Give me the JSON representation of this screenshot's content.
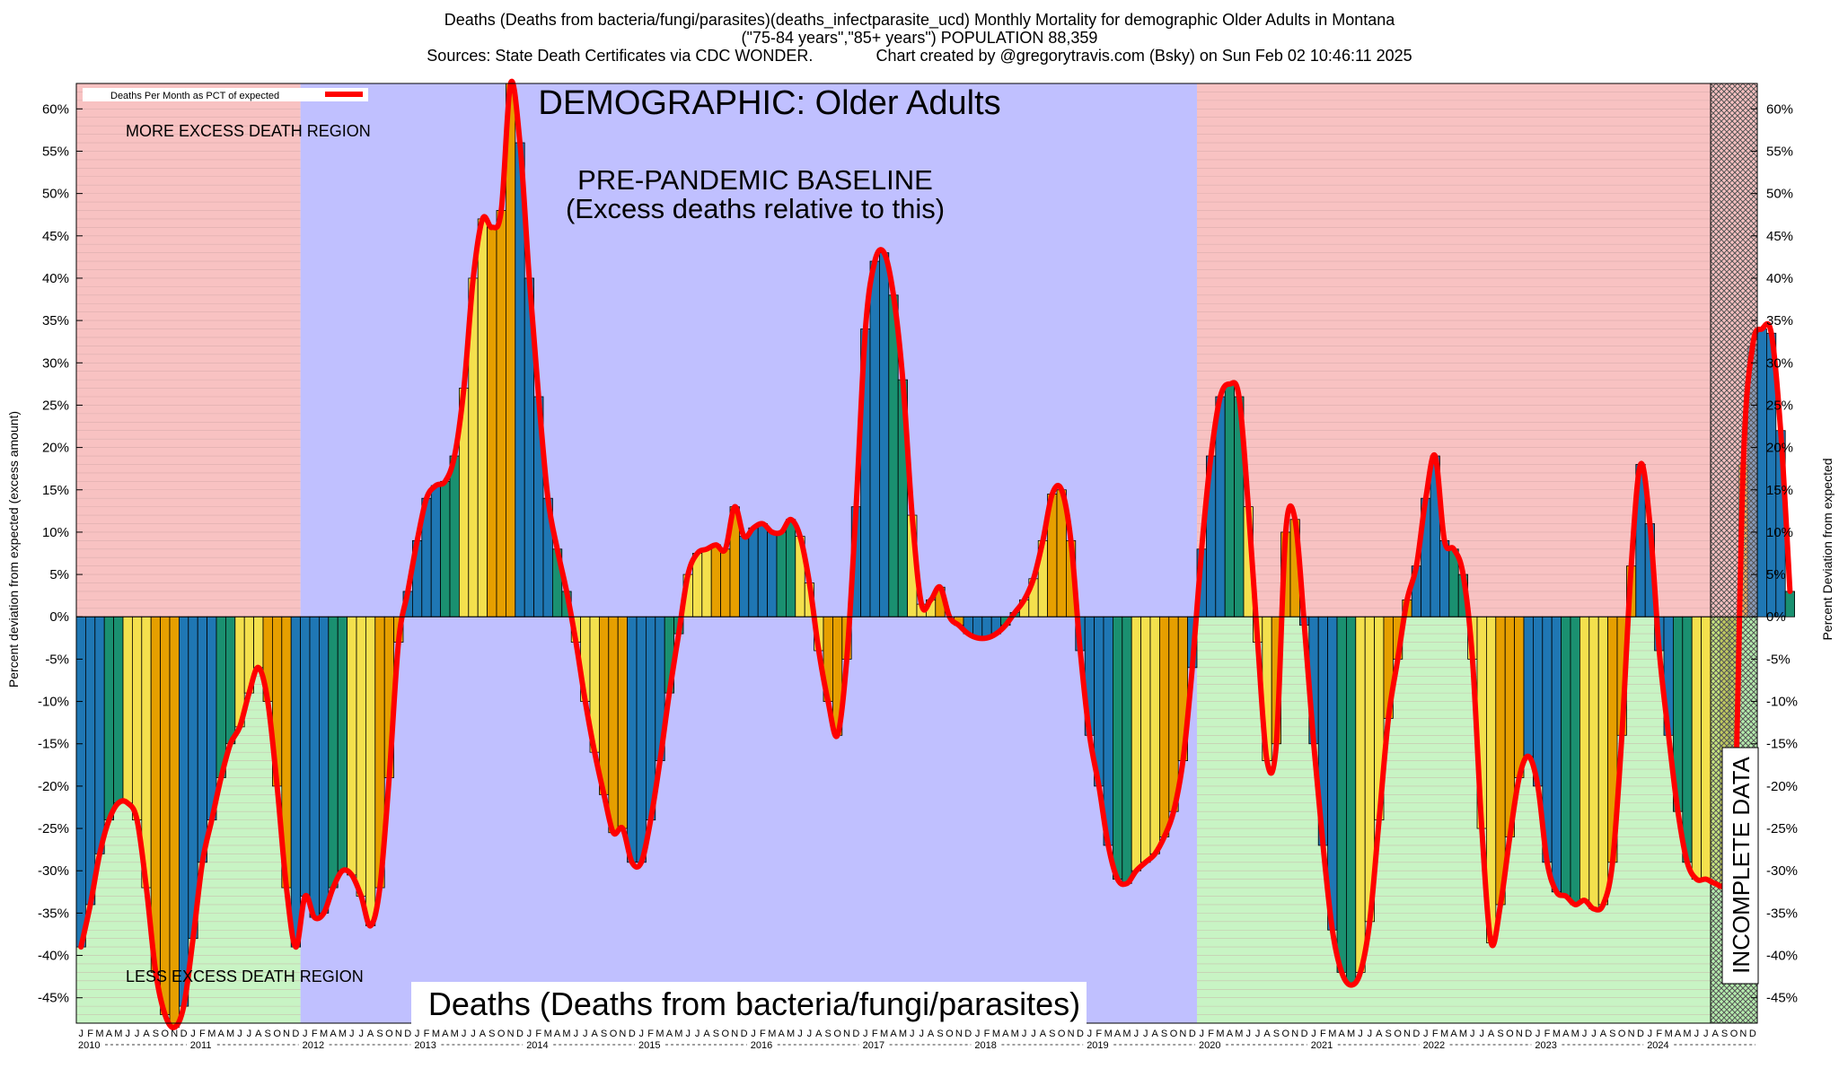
{
  "title_lines": [
    "Deaths (Deaths from bacteria/fungi/parasites)(deaths_infectparasite_ucd) Monthly Mortality for demographic Older Adults in Montana",
    "(\"75-84 years\",\"85+ years\") POPULATION 88,359",
    "Sources: State Death Certificates via CDC WONDER.              Chart created by @gregorytravis.com (Bsky) on Sun Feb 02 10:46:11 2025"
  ],
  "labels": {
    "demographic": "DEMOGRAPHIC: Older Adults",
    "baseline_line1": "PRE-PANDEMIC BASELINE",
    "baseline_line2": "(Excess deaths relative to this)",
    "more_excess": "MORE EXCESS DEATH REGION",
    "less_excess": "LESS EXCESS DEATH REGION",
    "bottom_title": "Deaths (Deaths from bacteria/fungi/parasites)",
    "incomplete": "INCOMPLETE DATA",
    "legend": "Deaths Per Month as PCT of expected"
  },
  "colors": {
    "more_region": "#f8c2c2",
    "less_region": "#c8f4c4",
    "baseline_region": "#c0c0ff",
    "line": "#ff0000",
    "bar_palette": [
      "#1f77b4",
      "#1a9070",
      "#f4e04d",
      "#e69f00"
    ]
  },
  "chart_data": {
    "type": "bar",
    "ylabel_left": "Percent deviation from expected (excess amount)",
    "ylabel_right": "Percent Deviation from expected",
    "ylim": [
      -48,
      63
    ],
    "yticks": [
      -45,
      -40,
      -35,
      -30,
      -25,
      -20,
      -15,
      -10,
      -5,
      0,
      5,
      10,
      15,
      20,
      25,
      30,
      35,
      40,
      45,
      50,
      55,
      60
    ],
    "x_start": "2010-01",
    "month_letters": [
      "J",
      "F",
      "M",
      "A",
      "M",
      "J",
      "J",
      "A",
      "S",
      "O",
      "N",
      "D"
    ],
    "years": [
      "2010",
      "2011",
      "2012",
      "2013",
      "2014",
      "2015",
      "2016",
      "2017",
      "2018",
      "2019",
      "2020",
      "2021",
      "2022",
      "2023",
      "2024"
    ],
    "baseline_period": [
      "2012-01",
      "2019-12"
    ],
    "incomplete_period": [
      "2024-08",
      "2024-12"
    ],
    "series": [
      {
        "name": "Deaths Per Month as PCT of expected",
        "values": [
          -39,
          -34,
          -28,
          -24,
          -22,
          -22,
          -24,
          -32,
          -42,
          -47,
          -48.5,
          -46,
          -38,
          -29,
          -24,
          -19,
          -15,
          -13,
          -9,
          -6,
          -10,
          -20,
          -32,
          -39,
          -33,
          -35.5,
          -35,
          -32,
          -30,
          -30.5,
          -33,
          -36.5,
          -32,
          -19,
          -3,
          3,
          9,
          14,
          15.5,
          16,
          19,
          27,
          40,
          47,
          46,
          48,
          63,
          56,
          40,
          26,
          14,
          8,
          3,
          -3,
          -10,
          -16,
          -21,
          -25.5,
          -25,
          -29,
          -29,
          -24,
          -17,
          -9,
          -2,
          5,
          7.5,
          8,
          8.5,
          8,
          13,
          9.5,
          10.5,
          11,
          10,
          10,
          11.5,
          9.5,
          4,
          -4,
          -10,
          -14,
          -5,
          13,
          34,
          42,
          43,
          38,
          28,
          12,
          1.5,
          2,
          3.5,
          0,
          -1,
          -2,
          -2.5,
          -2.5,
          -2,
          -1,
          0.5,
          2,
          4.5,
          9,
          14.5,
          15,
          9,
          -4,
          -14,
          -20,
          -27,
          -31,
          -31.5,
          -30,
          -29,
          -28,
          -26,
          -23,
          -17,
          -6,
          8,
          19,
          26,
          27.5,
          26,
          13,
          -3,
          -17,
          -15,
          10,
          11.5,
          -1,
          -15,
          -27,
          -37,
          -42,
          -43.5,
          -42,
          -36,
          -24,
          -12,
          -5,
          2,
          6,
          14,
          19,
          9,
          8,
          5,
          -5,
          -25,
          -38.5,
          -34,
          -26,
          -19,
          -16.5,
          -20,
          -29,
          -32.5,
          -33,
          -34,
          -33.5,
          -34.5,
          -34,
          -29,
          -14,
          6,
          18,
          11,
          -4,
          -14,
          -23,
          -29,
          -31,
          -31,
          -31.5,
          -31.5,
          -27,
          18,
          32,
          34,
          33.5,
          22,
          3
        ]
      }
    ]
  }
}
